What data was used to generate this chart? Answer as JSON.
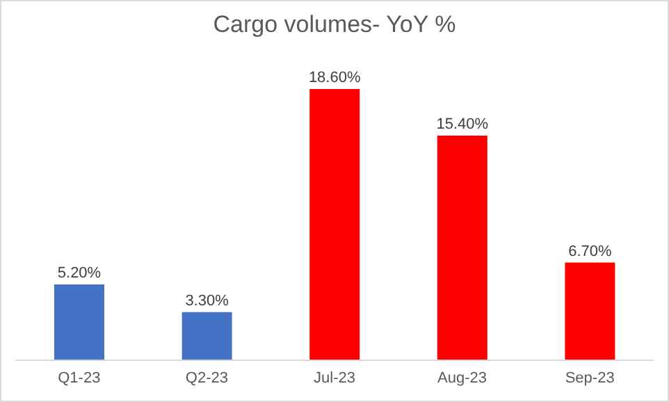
{
  "chart_data": {
    "type": "bar",
    "title": "Cargo volumes- YoY %",
    "categories": [
      "Q1-23",
      "Q2-23",
      "Jul-23",
      "Aug-23",
      "Sep-23"
    ],
    "values": [
      5.2,
      3.3,
      18.6,
      15.4,
      6.7
    ],
    "colors": [
      "#4472c4",
      "#4472c4",
      "#ff0000",
      "#ff0000",
      "#ff0000"
    ],
    "value_labels": [
      "5.20%",
      "3.30%",
      "18.60%",
      "15.40%",
      "6.70%"
    ],
    "tick_labels": "x"
  }
}
